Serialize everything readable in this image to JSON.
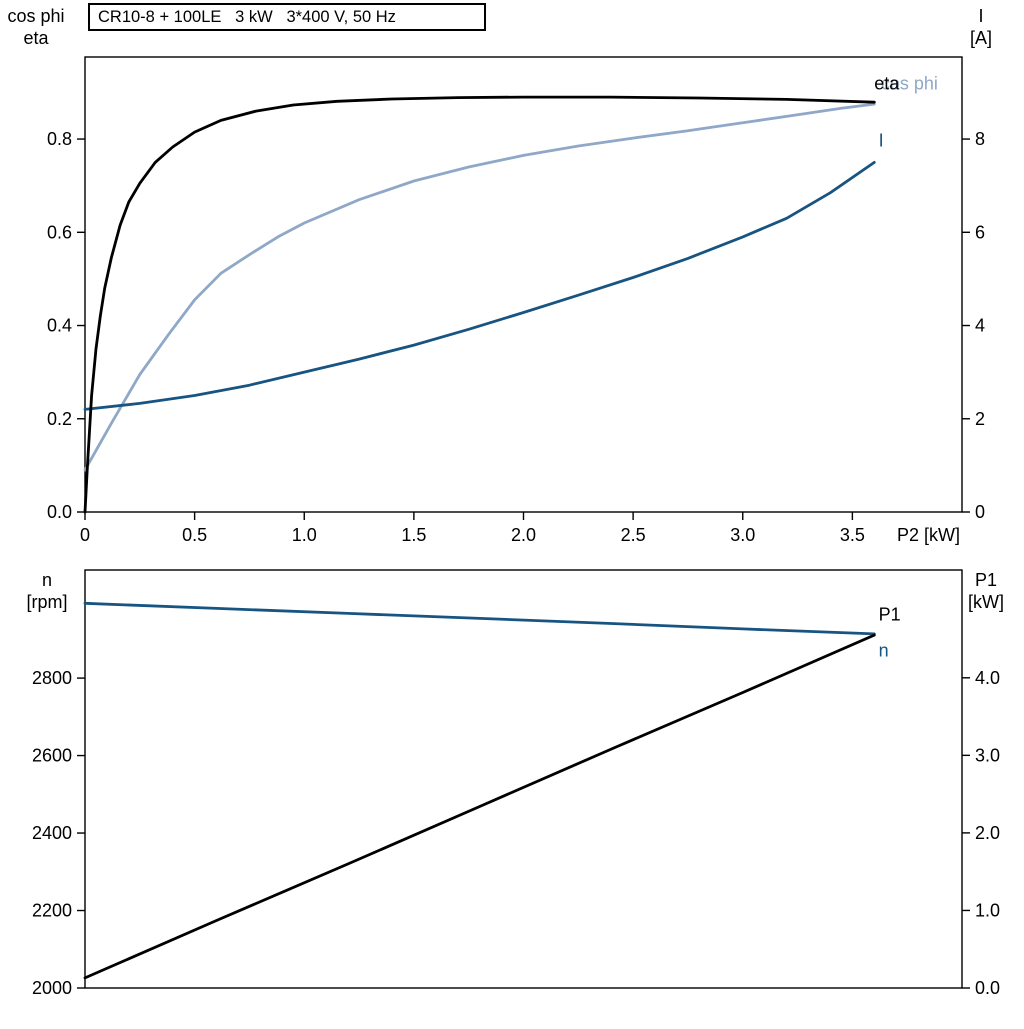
{
  "header": {
    "title": "CR10-8 + 100LE   3 kW   3*400 V, 50 Hz"
  },
  "colors": {
    "black": "#000000",
    "dark_blue": "#175482",
    "light_blue": "#8FA8C8",
    "axis": "#000000",
    "background": "#ffffff"
  },
  "chart_data": [
    {
      "type": "line",
      "name": "motor-efficiency-current-chart",
      "title": "CR10-8 + 100LE   3 kW   3*400 V, 50 Hz",
      "grid": false,
      "x_axis": {
        "label": "P2 [kW]",
        "min": 0,
        "max": 4.0,
        "ticks": [
          0,
          0.5,
          1.0,
          1.5,
          2.0,
          2.5,
          3.0,
          3.5
        ],
        "tick_labels": [
          "0",
          "0.5",
          "1.0",
          "1.5",
          "2.0",
          "2.5",
          "3.0",
          "3.5"
        ]
      },
      "left_axis": {
        "title_lines": [
          "cos phi",
          "eta"
        ],
        "min": 0,
        "max": 0.976,
        "ticks": [
          0.0,
          0.2,
          0.4,
          0.6,
          0.8
        ],
        "tick_labels": [
          "0.0",
          "0.2",
          "0.4",
          "0.6",
          "0.8"
        ]
      },
      "right_axis": {
        "title_lines": [
          "I",
          "[A]"
        ],
        "min": 0,
        "max": 9.76,
        "ticks": [
          0,
          2,
          4,
          6,
          8
        ],
        "tick_labels": [
          "0",
          "2",
          "4",
          "6",
          "8"
        ]
      },
      "series": [
        {
          "name": "cos-phi",
          "axis": "left",
          "color_key": "light_blue",
          "width": 2.8,
          "end_label": {
            "text": "cos phi",
            "x": 3.63,
            "y": 0.906
          },
          "points": [
            [
              0,
              0.09
            ],
            [
              0.12,
              0.19
            ],
            [
              0.25,
              0.295
            ],
            [
              0.38,
              0.38
            ],
            [
              0.5,
              0.455
            ],
            [
              0.62,
              0.512
            ],
            [
              0.75,
              0.552
            ],
            [
              0.88,
              0.59
            ],
            [
              1,
              0.62
            ],
            [
              1.25,
              0.67
            ],
            [
              1.5,
              0.71
            ],
            [
              1.75,
              0.74
            ],
            [
              2,
              0.765
            ],
            [
              2.25,
              0.785
            ],
            [
              2.5,
              0.802
            ],
            [
              2.75,
              0.818
            ],
            [
              3,
              0.835
            ],
            [
              3.25,
              0.852
            ],
            [
              3.45,
              0.866
            ],
            [
              3.6,
              0.875
            ]
          ]
        },
        {
          "name": "current-I",
          "axis": "right",
          "color_key": "dark_blue",
          "width": 2.8,
          "end_label": {
            "text": "I",
            "x": 3.62,
            "y": 7.84
          },
          "points": [
            [
              0,
              2.2
            ],
            [
              0.25,
              2.33
            ],
            [
              0.5,
              2.5
            ],
            [
              0.75,
              2.72
            ],
            [
              1,
              3
            ],
            [
              1.25,
              3.28
            ],
            [
              1.5,
              3.58
            ],
            [
              1.75,
              3.92
            ],
            [
              2,
              4.28
            ],
            [
              2.25,
              4.65
            ],
            [
              2.5,
              5.03
            ],
            [
              2.75,
              5.44
            ],
            [
              3,
              5.9
            ],
            [
              3.2,
              6.3
            ],
            [
              3.4,
              6.85
            ],
            [
              3.6,
              7.5
            ]
          ]
        },
        {
          "name": "eta",
          "axis": "left",
          "color_key": "black",
          "width": 2.8,
          "end_label": {
            "text": "eta",
            "x": 3.6,
            "y": 0.906
          },
          "points": [
            [
              0,
              0
            ],
            [
              0.01,
              0.09
            ],
            [
              0.03,
              0.25
            ],
            [
              0.05,
              0.35
            ],
            [
              0.07,
              0.42
            ],
            [
              0.09,
              0.48
            ],
            [
              0.12,
              0.545
            ],
            [
              0.16,
              0.615
            ],
            [
              0.2,
              0.665
            ],
            [
              0.25,
              0.705
            ],
            [
              0.32,
              0.75
            ],
            [
              0.4,
              0.783
            ],
            [
              0.5,
              0.815
            ],
            [
              0.62,
              0.84
            ],
            [
              0.78,
              0.86
            ],
            [
              0.95,
              0.873
            ],
            [
              1.15,
              0.881
            ],
            [
              1.4,
              0.886
            ],
            [
              1.7,
              0.889
            ],
            [
              2,
              0.89
            ],
            [
              2.4,
              0.89
            ],
            [
              2.8,
              0.888
            ],
            [
              3.2,
              0.885
            ],
            [
              3.6,
              0.879
            ]
          ]
        }
      ]
    },
    {
      "type": "line",
      "name": "motor-speed-power-chart",
      "title": "",
      "grid": false,
      "x_axis": {
        "label": "",
        "min": 0,
        "max": 4.0,
        "ticks": [],
        "tick_labels": []
      },
      "left_axis": {
        "title_lines": [
          "n",
          "[rpm]"
        ],
        "min": 2000,
        "max": 3079,
        "ticks": [
          2000,
          2200,
          2400,
          2600,
          2800
        ],
        "tick_labels": [
          "2000",
          "2200",
          "2400",
          "2600",
          "2800"
        ]
      },
      "right_axis": {
        "title_lines": [
          "P1",
          "[kW]"
        ],
        "min": 0,
        "max": 5.39,
        "ticks": [
          0,
          1,
          2,
          3,
          4
        ],
        "tick_labels": [
          "0.0",
          "1.0",
          "2.0",
          "3.0",
          "4.0"
        ]
      },
      "series": [
        {
          "name": "speed-n",
          "axis": "left",
          "color_key": "dark_blue",
          "width": 2.8,
          "end_label": {
            "text": "n",
            "x": 3.62,
            "y": 2856
          },
          "points": [
            [
              0,
              2993
            ],
            [
              0.6,
              2980
            ],
            [
              1.2,
              2967
            ],
            [
              1.8,
              2954
            ],
            [
              2.4,
              2941
            ],
            [
              3,
              2927
            ],
            [
              3.6,
              2914
            ]
          ]
        },
        {
          "name": "power-P1",
          "axis": "right",
          "color_key": "black",
          "width": 2.8,
          "end_label": {
            "text": "P1",
            "x": 3.62,
            "y": 4.74
          },
          "points": [
            [
              0,
              0.13
            ],
            [
              0.6,
              0.87
            ],
            [
              1.2,
              1.6
            ],
            [
              1.8,
              2.34
            ],
            [
              2.4,
              3.08
            ],
            [
              3,
              3.81
            ],
            [
              3.6,
              4.55
            ]
          ]
        }
      ]
    }
  ]
}
